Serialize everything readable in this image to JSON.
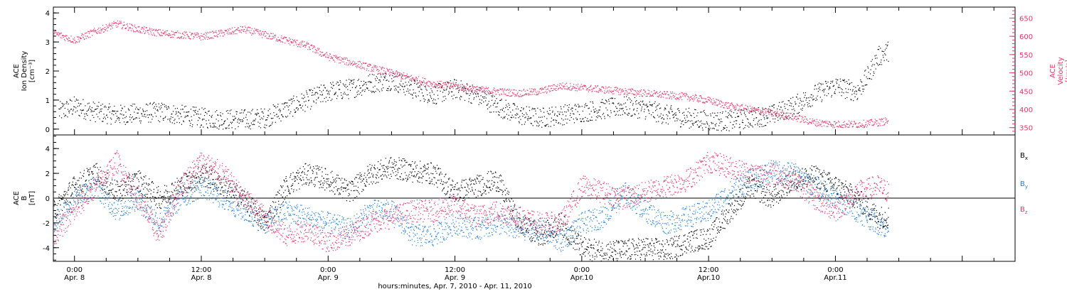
{
  "chart_data": [
    {
      "type": "scatter",
      "panel": "top",
      "ylabel_left": [
        "ACE",
        "Ion Density",
        "[cm⁻³]"
      ],
      "ylabel_right": [
        "ACE",
        "Velocity",
        "[km/s]"
      ],
      "y_left_range": [
        -0.2,
        4.2
      ],
      "y_left_ticks": [
        0,
        1,
        2,
        3,
        4
      ],
      "y_right_range": [
        330,
        680
      ],
      "y_right_ticks": [
        350,
        400,
        450,
        500,
        550,
        600,
        650
      ],
      "x_range_hours": [
        -2,
        89
      ],
      "series": [
        {
          "name": "Ion Density",
          "axis": "left",
          "color": "#000000",
          "points": [
            [
              -1.5,
              0.6
            ],
            [
              0,
              0.8
            ],
            [
              2,
              0.6
            ],
            [
              4,
              0.5
            ],
            [
              6,
              0.55
            ],
            [
              8,
              0.6
            ],
            [
              10,
              0.5
            ],
            [
              12,
              0.4
            ],
            [
              14,
              0.35
            ],
            [
              16,
              0.35
            ],
            [
              18,
              0.4
            ],
            [
              20,
              0.7
            ],
            [
              22,
              1.0
            ],
            [
              24,
              1.3
            ],
            [
              26,
              1.4
            ],
            [
              28,
              1.6
            ],
            [
              30,
              1.7
            ],
            [
              32,
              1.4
            ],
            [
              34,
              1.2
            ],
            [
              36,
              1.4
            ],
            [
              38,
              1.2
            ],
            [
              40,
              0.8
            ],
            [
              42,
              0.5
            ],
            [
              44,
              0.4
            ],
            [
              46,
              0.5
            ],
            [
              48,
              0.6
            ],
            [
              50,
              0.7
            ],
            [
              52,
              0.8
            ],
            [
              54,
              0.7
            ],
            [
              56,
              0.5
            ],
            [
              58,
              0.4
            ],
            [
              60,
              0.3
            ],
            [
              62,
              0.3
            ],
            [
              64,
              0.4
            ],
            [
              66,
              0.5
            ],
            [
              68,
              0.8
            ],
            [
              70,
              1.2
            ],
            [
              72,
              1.5
            ],
            [
              74,
              1.3
            ],
            [
              75,
              1.8
            ],
            [
              76,
              2.5
            ],
            [
              77,
              2.7
            ]
          ]
        },
        {
          "name": "Velocity",
          "axis": "right",
          "color": "#E8336A",
          "points": [
            [
              -2,
              610
            ],
            [
              0,
              590
            ],
            [
              2,
              615
            ],
            [
              4,
              635
            ],
            [
              6,
              620
            ],
            [
              8,
              610
            ],
            [
              10,
              605
            ],
            [
              12,
              600
            ],
            [
              14,
              610
            ],
            [
              16,
              620
            ],
            [
              18,
              605
            ],
            [
              20,
              590
            ],
            [
              22,
              575
            ],
            [
              24,
              545
            ],
            [
              26,
              530
            ],
            [
              28,
              515
            ],
            [
              30,
              500
            ],
            [
              32,
              485
            ],
            [
              34,
              470
            ],
            [
              36,
              465
            ],
            [
              38,
              455
            ],
            [
              40,
              450
            ],
            [
              42,
              445
            ],
            [
              44,
              450
            ],
            [
              46,
              465
            ],
            [
              48,
              460
            ],
            [
              50,
              455
            ],
            [
              52,
              450
            ],
            [
              54,
              445
            ],
            [
              56,
              440
            ],
            [
              58,
              435
            ],
            [
              60,
              425
            ],
            [
              62,
              410
            ],
            [
              64,
              400
            ],
            [
              66,
              390
            ],
            [
              68,
              380
            ],
            [
              70,
              365
            ],
            [
              72,
              360
            ],
            [
              74,
              360
            ],
            [
              76,
              365
            ],
            [
              77,
              370
            ]
          ]
        }
      ]
    },
    {
      "type": "scatter",
      "panel": "bottom",
      "ylabel_left": [
        "ACE",
        "B",
        "[nT]"
      ],
      "y_range": [
        -5.1,
        5.1
      ],
      "y_ticks": [
        -4,
        -2,
        0,
        2,
        4
      ],
      "zero_line": true,
      "x_range_hours": [
        -2,
        89
      ],
      "xlabel": "hours:minutes, Apr.  7, 2010 - Apr. 11, 2010",
      "x_ticks": [
        {
          "hour": 0,
          "time": "0:00",
          "date": "Apr. 8"
        },
        {
          "hour": 12,
          "time": "12:00",
          "date": "Apr. 8"
        },
        {
          "hour": 24,
          "time": "0:00",
          "date": "Apr. 9"
        },
        {
          "hour": 36,
          "time": "12:00",
          "date": "Apr. 9"
        },
        {
          "hour": 48,
          "time": "0:00",
          "date": "Apr.10"
        },
        {
          "hour": 60,
          "time": "12:00",
          "date": "Apr.10"
        },
        {
          "hour": 72,
          "time": "0:00",
          "date": "Apr.11"
        }
      ],
      "legend": [
        {
          "label": "B",
          "sub": "x",
          "color": "#000000"
        },
        {
          "label": "B",
          "sub": "y",
          "color": "#1F7FE0"
        },
        {
          "label": "B",
          "sub": "z",
          "color": "#E8336A"
        }
      ],
      "series": [
        {
          "name": "Bx",
          "color": "#000000",
          "points": [
            [
              -2,
              -1
            ],
            [
              0,
              1
            ],
            [
              2,
              2
            ],
            [
              4,
              0.5
            ],
            [
              6,
              1.5
            ],
            [
              8,
              0
            ],
            [
              10,
              1
            ],
            [
              12,
              2
            ],
            [
              14,
              1
            ],
            [
              16,
              0
            ],
            [
              18,
              -2
            ],
            [
              20,
              1
            ],
            [
              22,
              2
            ],
            [
              24,
              1.5
            ],
            [
              26,
              0.5
            ],
            [
              28,
              2
            ],
            [
              30,
              2.5
            ],
            [
              32,
              2.2
            ],
            [
              34,
              2
            ],
            [
              36,
              0.5
            ],
            [
              38,
              1
            ],
            [
              40,
              1.5
            ],
            [
              42,
              -2
            ],
            [
              44,
              -3
            ],
            [
              46,
              -2
            ],
            [
              48,
              -4
            ],
            [
              50,
              -4.3
            ],
            [
              52,
              -4.2
            ],
            [
              54,
              -4
            ],
            [
              56,
              -4.2
            ],
            [
              58,
              -3.5
            ],
            [
              60,
              -3.2
            ],
            [
              62,
              -1
            ],
            [
              64,
              1
            ],
            [
              66,
              0
            ],
            [
              68,
              1.5
            ],
            [
              70,
              1.8
            ],
            [
              72,
              1
            ],
            [
              74,
              0
            ],
            [
              76,
              -1.5
            ],
            [
              77,
              -1.5
            ]
          ]
        },
        {
          "name": "By",
          "color": "#1F7FE0",
          "points": [
            [
              -2,
              -2
            ],
            [
              0,
              0
            ],
            [
              2,
              1
            ],
            [
              4,
              -1
            ],
            [
              6,
              0
            ],
            [
              8,
              -2
            ],
            [
              10,
              0
            ],
            [
              12,
              1
            ],
            [
              14,
              0
            ],
            [
              16,
              -1
            ],
            [
              18,
              -2
            ],
            [
              20,
              -1
            ],
            [
              22,
              -1.5
            ],
            [
              24,
              -2
            ],
            [
              26,
              -2.5
            ],
            [
              28,
              -1
            ],
            [
              30,
              -1
            ],
            [
              32,
              -3
            ],
            [
              34,
              -3
            ],
            [
              36,
              -2
            ],
            [
              38,
              -2.5
            ],
            [
              40,
              -2
            ],
            [
              42,
              -2.5
            ],
            [
              44,
              -2.5
            ],
            [
              46,
              -3.5
            ],
            [
              48,
              -2
            ],
            [
              50,
              -1.5
            ],
            [
              52,
              0.5
            ],
            [
              54,
              -1
            ],
            [
              56,
              -2
            ],
            [
              58,
              -1.5
            ],
            [
              60,
              -1
            ],
            [
              62,
              0.5
            ],
            [
              64,
              1.5
            ],
            [
              66,
              2.2
            ],
            [
              68,
              2
            ],
            [
              70,
              1
            ],
            [
              72,
              0
            ],
            [
              74,
              -1
            ],
            [
              76,
              -2
            ],
            [
              77,
              -2.5
            ]
          ]
        },
        {
          "name": "Bz",
          "color": "#E8336A",
          "points": [
            [
              -2,
              -3
            ],
            [
              0,
              -1
            ],
            [
              2,
              1
            ],
            [
              4,
              3
            ],
            [
              6,
              0
            ],
            [
              8,
              -3
            ],
            [
              10,
              1
            ],
            [
              12,
              3
            ],
            [
              14,
              2
            ],
            [
              16,
              0
            ],
            [
              18,
              -1.5
            ],
            [
              20,
              -3
            ],
            [
              22,
              -2.5
            ],
            [
              24,
              -3.5
            ],
            [
              26,
              -3
            ],
            [
              28,
              -2
            ],
            [
              30,
              -1.5
            ],
            [
              32,
              -1
            ],
            [
              34,
              -1
            ],
            [
              36,
              -0.5
            ],
            [
              38,
              -1.5
            ],
            [
              40,
              -1
            ],
            [
              42,
              -1.5
            ],
            [
              44,
              -2
            ],
            [
              46,
              -2
            ],
            [
              48,
              1
            ],
            [
              50,
              0.5
            ],
            [
              52,
              0
            ],
            [
              54,
              0.5
            ],
            [
              56,
              1
            ],
            [
              58,
              1.5
            ],
            [
              60,
              3
            ],
            [
              62,
              2.5
            ],
            [
              64,
              2
            ],
            [
              66,
              2
            ],
            [
              68,
              1.5
            ],
            [
              70,
              0
            ],
            [
              72,
              -1
            ],
            [
              74,
              0.5
            ],
            [
              76,
              1
            ],
            [
              77,
              0.5
            ]
          ]
        }
      ]
    }
  ]
}
